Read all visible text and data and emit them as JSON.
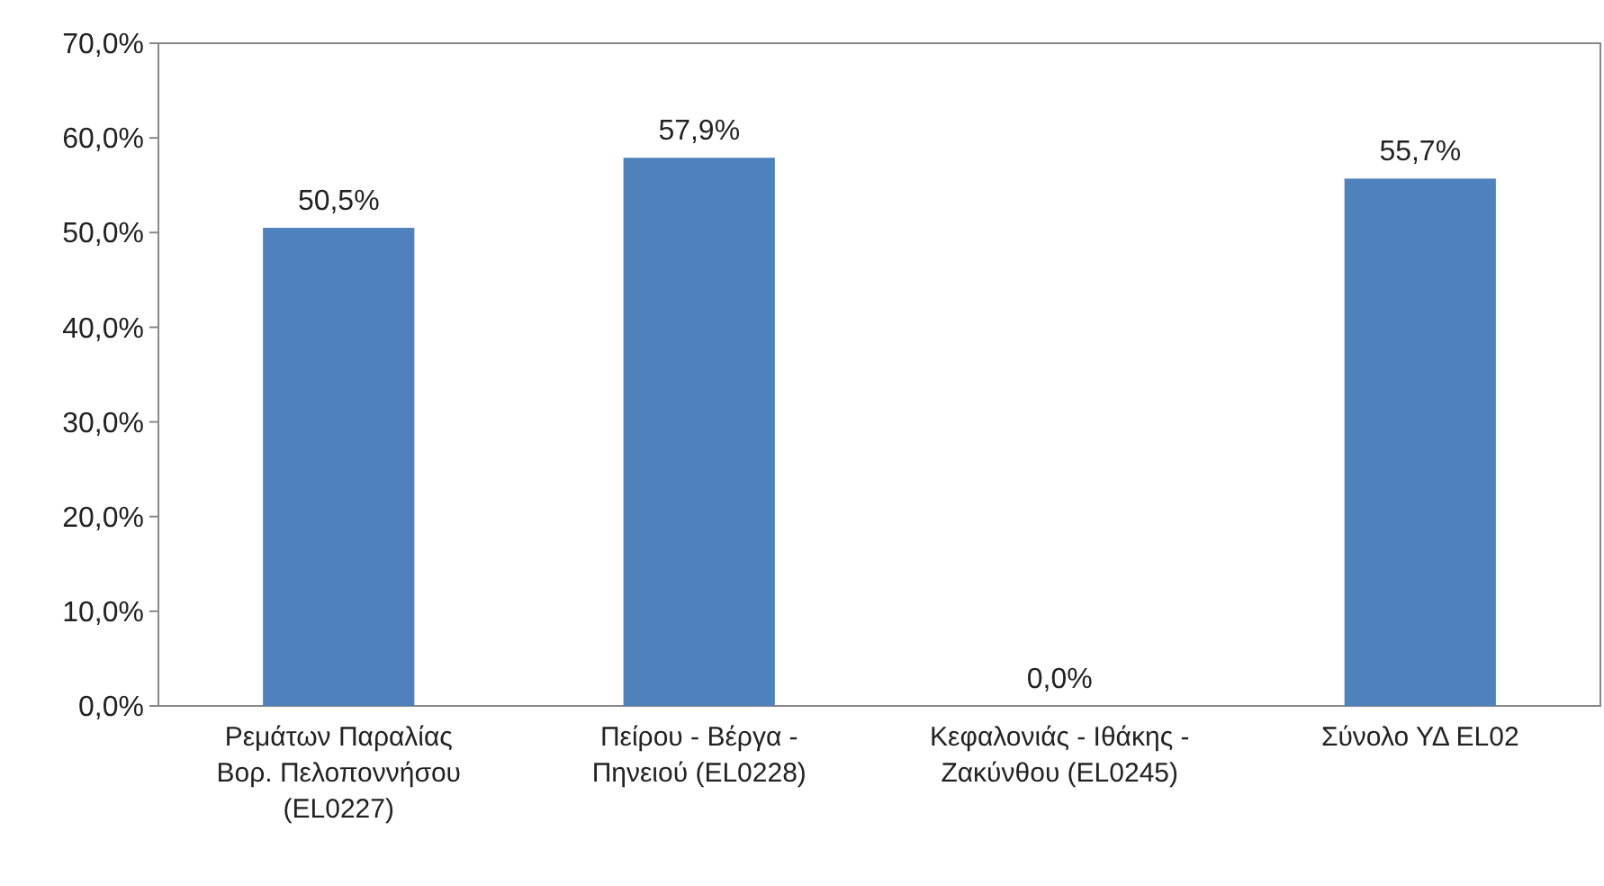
{
  "chart_data": {
    "type": "bar",
    "categories": [
      "Ρεμάτων Παραλίας Βορ. Πελοποννήσου (EL0227)",
      "Πείρου - Βέργα - Πηνειού (EL0228)",
      "Κεφαλονιάς - Ιθάκης - Ζακύνθου (EL0245)",
      "Σύνολο ΥΔ EL02"
    ],
    "values": [
      50.5,
      57.9,
      0,
      55.7
    ],
    "value_labels": [
      "50,5%",
      "57,9%",
      "0,0%",
      "55,7%"
    ],
    "color": "#4f81bd",
    "ylim": [
      0,
      70
    ],
    "yticks": [
      {
        "value": 0,
        "label": "0,0%"
      },
      {
        "value": 10,
        "label": "10,0%"
      },
      {
        "value": 20,
        "label": "20,0%"
      },
      {
        "value": 30,
        "label": "30,0%"
      },
      {
        "value": 40,
        "label": "40,0%"
      },
      {
        "value": 50,
        "label": "50,0%"
      },
      {
        "value": 60,
        "label": "60,0%"
      },
      {
        "value": 70,
        "label": "70,0%"
      }
    ],
    "grid": false
  }
}
